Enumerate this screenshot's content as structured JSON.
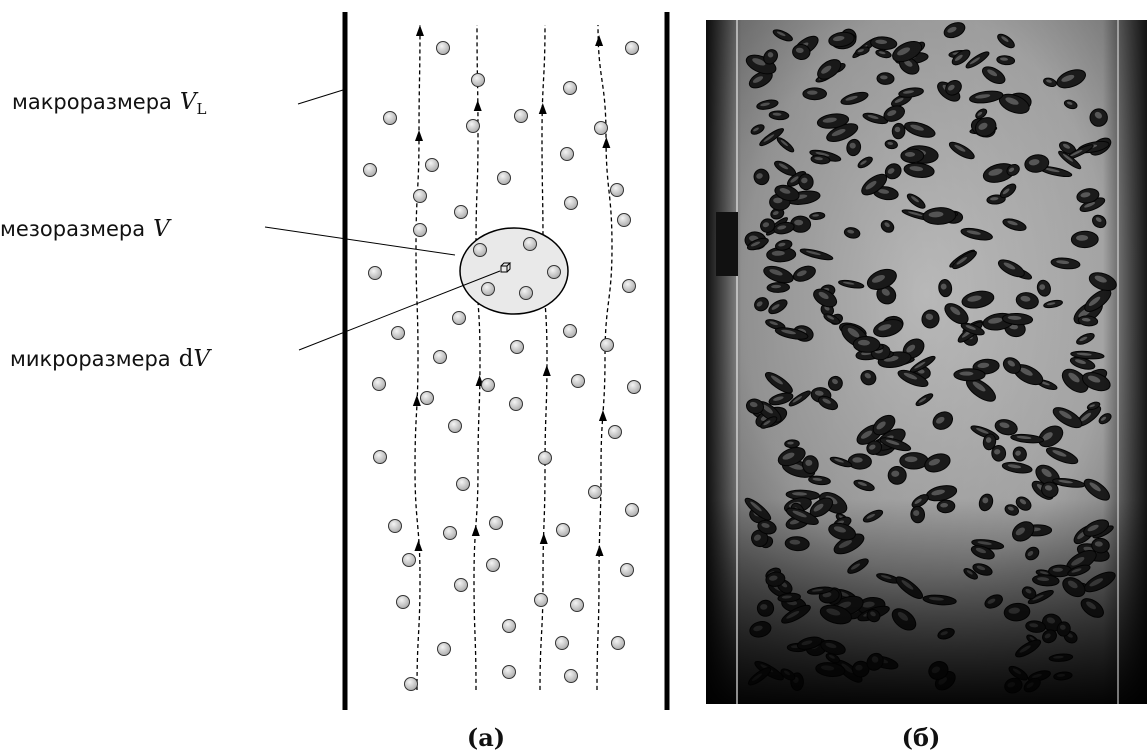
{
  "labels": {
    "macro": {
      "text": "макроразмера",
      "sym": "V",
      "sub": "L"
    },
    "meso": {
      "text": "мезоразмера",
      "sym": "V"
    },
    "micro": {
      "text": "микроразмера",
      "d": "d",
      "sym": "V"
    }
  },
  "captions": {
    "left": "(а)",
    "right": "(б)"
  },
  "colors": {
    "wall": "#000000",
    "particle": "#d0d0d0",
    "ellipse": "#e9e9e9"
  }
}
